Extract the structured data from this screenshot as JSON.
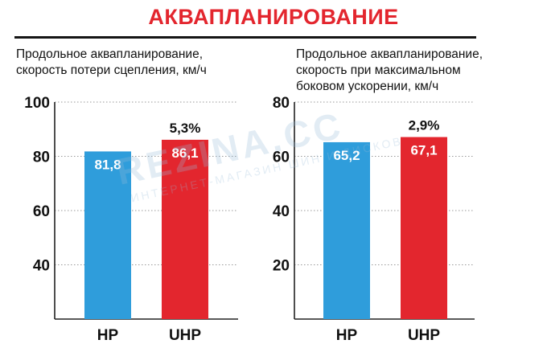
{
  "title": "АКВАПЛАНИРОВАНИЕ",
  "colors": {
    "hp": "#2f9ddb",
    "uhp": "#e3262e",
    "title": "#e3262e"
  },
  "watermark": {
    "main": "REZINA.CC",
    "sub": "ИНТЕРНЕТ-МАГАЗИН ШИН И ДИСКОВ"
  },
  "chart_data": [
    {
      "type": "bar",
      "title_lines": [
        "Продольное аквапланирование,",
        "скорость потери сцепления, км/ч"
      ],
      "categories": [
        "HP",
        "UHP"
      ],
      "values": [
        81.8,
        86.1
      ],
      "value_labels": [
        "81,8",
        "86,1"
      ],
      "annotation": {
        "category": "UHP",
        "text": "5,3%"
      },
      "ylim": [
        20,
        100
      ],
      "yticks": [
        40,
        60,
        80,
        100
      ],
      "grid": true
    },
    {
      "type": "bar",
      "title_lines": [
        "Продольное аквапланирование,",
        "скорость при максимальном",
        "боковом ускорении, км/ч"
      ],
      "categories": [
        "HP",
        "UHP"
      ],
      "values": [
        65.2,
        67.1
      ],
      "value_labels": [
        "65,2",
        "67,1"
      ],
      "annotation": {
        "category": "UHP",
        "text": "2,9%"
      },
      "ylim": [
        0,
        80
      ],
      "yticks": [
        20,
        40,
        60,
        80
      ],
      "grid": true
    }
  ]
}
